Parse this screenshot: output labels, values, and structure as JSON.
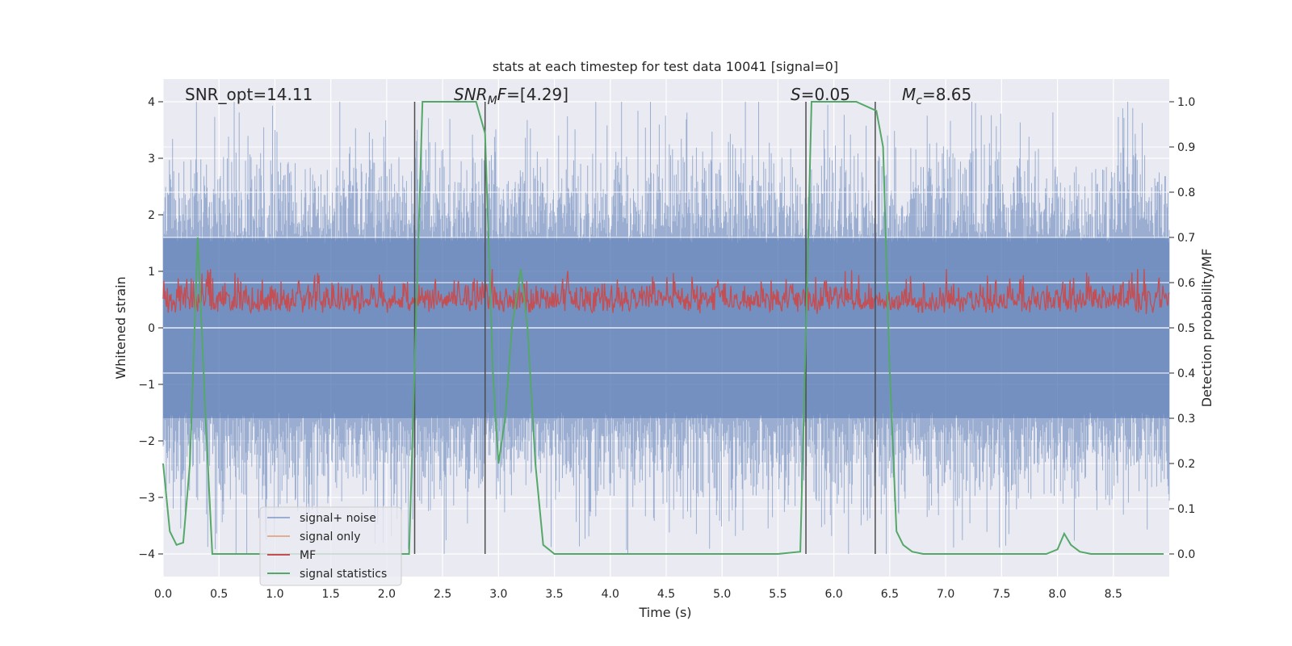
{
  "chart_data": {
    "type": "line",
    "title": "stats at each timestep for test data 10041 [signal=0]",
    "xlabel": "Time (s)",
    "ylabel": "Whitened strain",
    "y2label": "Detection probability/MF",
    "xlim": [
      0,
      9.0
    ],
    "ylim": [
      -4.4,
      4.4
    ],
    "y2lim": [
      -0.05,
      1.05
    ],
    "xticks": [
      "0.0",
      "0.5",
      "1.0",
      "1.5",
      "2.0",
      "2.5",
      "3.0",
      "3.5",
      "4.0",
      "4.5",
      "5.0",
      "5.5",
      "6.0",
      "6.5",
      "7.0",
      "7.5",
      "8.0",
      "8.5"
    ],
    "yticks": [
      "4",
      "3",
      "2",
      "1",
      "0",
      "−1",
      "−2",
      "−3",
      "−4"
    ],
    "y2ticks": [
      "1.0",
      "0.9",
      "0.8",
      "0.7",
      "0.6",
      "0.5",
      "0.4",
      "0.3",
      "0.2",
      "0.1",
      "0.0"
    ],
    "grid": true,
    "legend_position": "lower-left",
    "annotations": {
      "snr_opt": "SNR_opt=14.11",
      "snr_mf_main": "SNR",
      "snr_mf_sub": "M",
      "snr_mf_rest": "F=[4.29]",
      "s_main": "S",
      "s_rest": "=0.05",
      "mc_main": "M",
      "mc_sub": "c",
      "mc_rest": "=8.65"
    },
    "series": [
      {
        "name": "signal+ noise",
        "color": "#4c72b0",
        "kind": "noise",
        "amplitude_envelope": [
          -4.0,
          4.0
        ]
      },
      {
        "name": "signal only",
        "color": "#dd8452",
        "kind": "flat",
        "values": [
          0
        ]
      },
      {
        "name": "MF",
        "color": "#c44e52",
        "kind": "noise",
        "axis": "y2",
        "range": [
          0.5,
          0.63
        ]
      },
      {
        "name": "signal statistics",
        "color": "#55a868",
        "axis": "y2",
        "x": [
          0.0,
          0.06,
          0.12,
          0.18,
          0.24,
          0.31,
          0.38,
          0.44,
          0.5,
          1.0,
          1.5,
          2.0,
          2.2,
          2.26,
          2.32,
          2.4,
          2.6,
          2.8,
          2.88,
          2.95,
          3.0,
          3.06,
          3.12,
          3.2,
          3.26,
          3.33,
          3.4,
          3.5,
          4.0,
          4.5,
          5.0,
          5.5,
          5.7,
          5.75,
          5.8,
          5.87,
          6.0,
          6.2,
          6.38,
          6.44,
          6.5,
          6.56,
          6.62,
          6.7,
          6.8,
          7.0,
          7.5,
          7.9,
          8.0,
          8.06,
          8.12,
          8.2,
          8.3,
          8.5,
          8.95
        ],
        "y": [
          0.2,
          0.05,
          0.02,
          0.025,
          0.2,
          0.7,
          0.3,
          0.0,
          0.0,
          0.0,
          0.0,
          0.0,
          0.0,
          0.5,
          1.0,
          1.0,
          1.0,
          1.0,
          0.93,
          0.4,
          0.2,
          0.3,
          0.5,
          0.63,
          0.5,
          0.2,
          0.02,
          0.0,
          0.0,
          0.0,
          0.0,
          0.0,
          0.005,
          0.5,
          1.0,
          1.0,
          1.0,
          1.0,
          0.98,
          0.9,
          0.4,
          0.05,
          0.02,
          0.005,
          0.0,
          0.0,
          0.0,
          0.0,
          0.01,
          0.045,
          0.02,
          0.005,
          0.0,
          0.0,
          0.0
        ]
      }
    ],
    "vertical_markers": [
      2.25,
      2.88,
      5.75,
      6.37
    ]
  }
}
